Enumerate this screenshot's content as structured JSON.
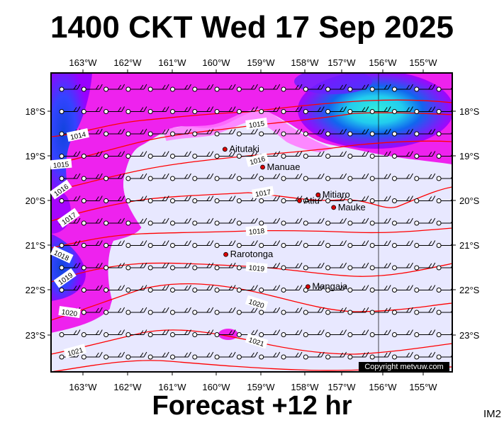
{
  "title": "1400 CKT Wed 17 Sep 2025",
  "footer": "Forecast +12 hr",
  "image_code": "IM2",
  "copyright": "Copyright metvuw.com",
  "map": {
    "lon_labels": [
      "163°W",
      "162°W",
      "161°W",
      "160°W",
      "159°W",
      "158°W",
      "157°W",
      "156°W",
      "155°W"
    ],
    "lat_labels": [
      "18°S",
      "19°S",
      "20°S",
      "21°S",
      "22°S",
      "23°S"
    ],
    "colors": {
      "land_sea_base": "#e8e8ff",
      "light_magenta": "#ff66ff",
      "magenta": "#ee00ee",
      "purple": "#9900ff",
      "blue": "#3344ff",
      "dark_blue": "#1144dd",
      "cyan": "#33eedd",
      "isobar": "#ff0000",
      "place_dot": "#dd0000"
    },
    "places": [
      {
        "name": "Aitutaki",
        "lon": -159.8,
        "lat": -18.85
      },
      {
        "name": "Manuae",
        "lon": -158.95,
        "lat": -19.25
      },
      {
        "name": "Mitiaro",
        "lon": -157.7,
        "lat": -19.87
      },
      {
        "name": "Atiu",
        "lon": -158.12,
        "lat": -20.0
      },
      {
        "name": "Mauke",
        "lon": -157.35,
        "lat": -20.15
      },
      {
        "name": "Rarotonga",
        "lon": -159.78,
        "lat": -21.2
      },
      {
        "name": "Mangaia",
        "lon": -157.93,
        "lat": -21.92
      }
    ],
    "isobar_labels": [
      "1014",
      "1015",
      "1016",
      "1017",
      "1018",
      "1019",
      "1020",
      "1021",
      "1015",
      "1016",
      "1017",
      "1018",
      "1019",
      "1020",
      "1021"
    ]
  }
}
